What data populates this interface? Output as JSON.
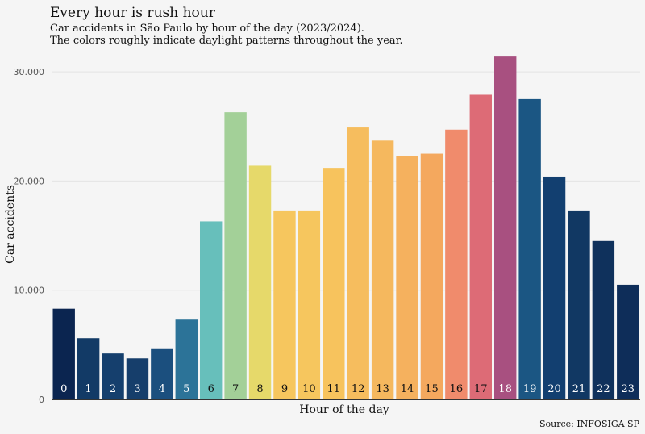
{
  "chart_data": {
    "type": "bar",
    "title": "Every hour is rush hour",
    "subtitle_lines": [
      "Car accidents in São Paulo by hour of the day (2023/2024).",
      "The colors roughly indicate daylight patterns throughout the year."
    ],
    "xlabel": "Hour of the day",
    "ylabel": "Car accidents",
    "caption": "Source: INFOSIGA SP",
    "ylim": [
      0,
      32000
    ],
    "yticks": [
      0,
      10000,
      20000,
      30000
    ],
    "ytick_labels": [
      "0",
      "10.000",
      "20.000",
      "30.000"
    ],
    "grid": "horizontal",
    "categories": [
      "0",
      "1",
      "2",
      "3",
      "4",
      "5",
      "6",
      "7",
      "8",
      "9",
      "10",
      "11",
      "12",
      "13",
      "14",
      "15",
      "16",
      "17",
      "18",
      "19",
      "20",
      "21",
      "22",
      "23"
    ],
    "values": [
      8300,
      5600,
      4200,
      3750,
      4600,
      7300,
      16300,
      26300,
      21400,
      17300,
      17300,
      21200,
      24900,
      23700,
      22300,
      22500,
      24700,
      27900,
      31400,
      27500,
      20400,
      17300,
      14500,
      10500
    ],
    "colors": [
      "#0b2550",
      "#123a66",
      "#153f6d",
      "#163e6b",
      "#1b4f7e",
      "#2c7398",
      "#67bfbb",
      "#a3d098",
      "#e6d96a",
      "#f6c65e",
      "#f6c65e",
      "#f7c35d",
      "#f6bd5e",
      "#f5b85e",
      "#f5b15e",
      "#f4a85e",
      "#f08b6c",
      "#dd6b76",
      "#a85080",
      "#1b5683",
      "#123f70",
      "#113863",
      "#0f315c",
      "#0e2d59"
    ],
    "label_colors": [
      "#ffffff",
      "#ffffff",
      "#ffffff",
      "#ffffff",
      "#ffffff",
      "#ffffff",
      "#111111",
      "#111111",
      "#111111",
      "#111111",
      "#111111",
      "#111111",
      "#111111",
      "#111111",
      "#111111",
      "#111111",
      "#111111",
      "#111111",
      "#ffffff",
      "#ffffff",
      "#ffffff",
      "#ffffff",
      "#ffffff",
      "#ffffff"
    ]
  }
}
